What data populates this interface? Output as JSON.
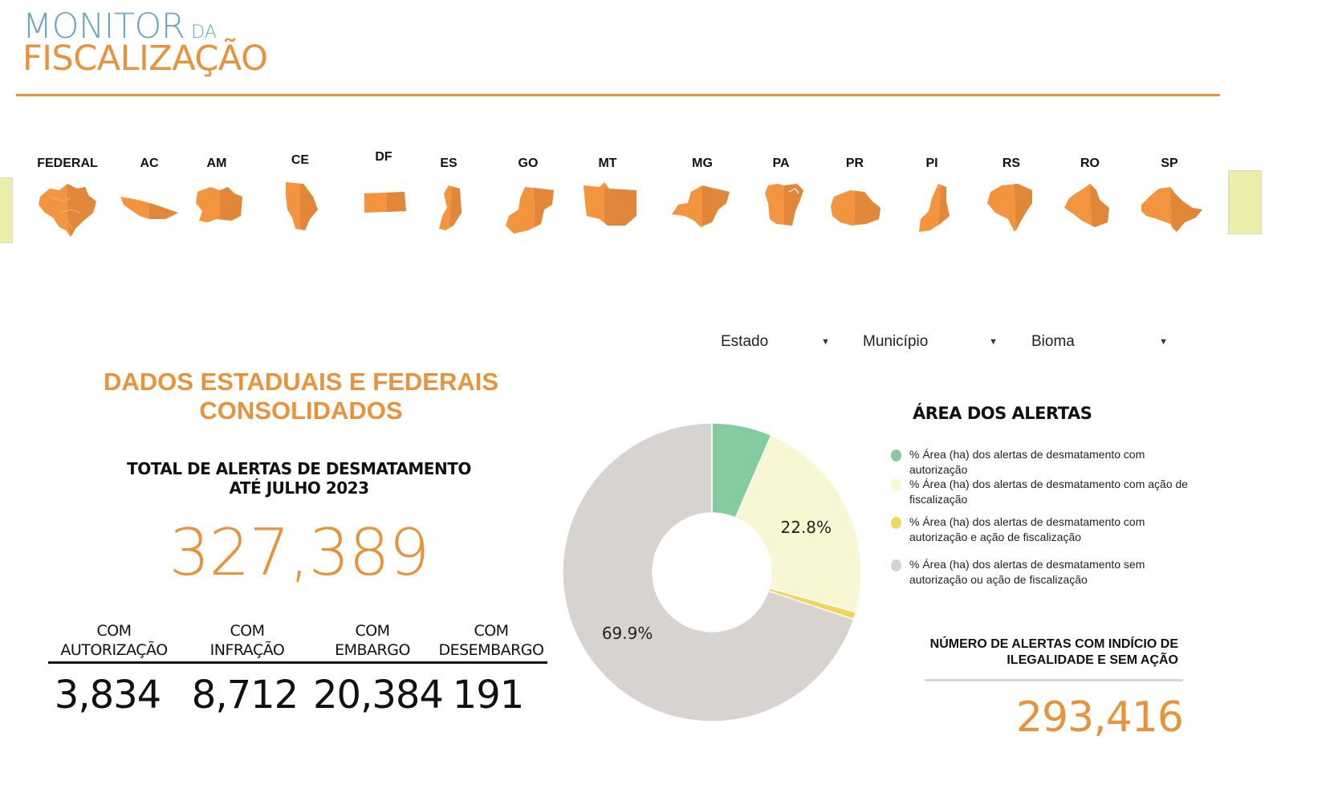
{
  "logo": {
    "line1": "MONITOR",
    "line1_small": "DA",
    "line2": "FISCALIZAÇÃO"
  },
  "states": [
    "FEDERAL",
    "AC",
    "AM",
    "CE",
    "DF",
    "ES",
    "GO",
    "MT",
    "MG",
    "PA",
    "PR",
    "PI",
    "RS",
    "RO",
    "SP"
  ],
  "filters": {
    "estado": "Estado",
    "municipio": "Município",
    "bioma": "Bioma"
  },
  "left": {
    "title": "DADOS ESTADUAIS E FEDERAIS CONSOLIDADOS",
    "total_label_1": "TOTAL DE ALERTAS DE DESMATAMENTO",
    "total_label_2": "ATÉ JULHO 2023",
    "total_value": "327,389",
    "stats": [
      {
        "label_1": "COM",
        "label_2": "AUTORIZAÇÃO",
        "value": "3,834"
      },
      {
        "label_1": "COM",
        "label_2": "INFRAÇÃO",
        "value": "8,712"
      },
      {
        "label_1": "COM",
        "label_2": "EMBARGO",
        "value": "20,384"
      },
      {
        "label_1": "COM",
        "label_2": "DESEMBARGO",
        "value": "191"
      }
    ]
  },
  "chart_data": {
    "type": "pie",
    "donut": true,
    "title": "ÁREA DOS ALERTAS",
    "series": [
      {
        "name": "% Área (ha) dos alertas de desmatamento com autorização",
        "value": 6.5,
        "color": "#84cc9f"
      },
      {
        "name": "% Área (ha) dos alertas de desmatamento com ação de fiscalização",
        "value": 22.8,
        "color": "#f7f7d3"
      },
      {
        "name": "% Área (ha) dos alertas de desmatamento com autorização e ação de fiscalização",
        "value": 0.8,
        "color": "#f2d65a"
      },
      {
        "name": "% Área (ha) dos alertas de desmatamento sem autorização ou ação de fiscalização",
        "value": 69.9,
        "color": "#d6d3d1"
      }
    ],
    "data_labels": [
      "",
      "22.8%",
      "",
      "69.9%"
    ],
    "legend_position": "right"
  },
  "ilegal": {
    "label_1": "NÚMERO DE ALERTAS COM INDÍCIO DE",
    "label_2": "ILEGALIDADE E SEM AÇÃO",
    "value": "293,416"
  },
  "colors": {
    "accent": "#e8933a",
    "logo_blue": "#6aa6bf",
    "map_light": "#f2953e",
    "map_dark": "#e0873a"
  }
}
